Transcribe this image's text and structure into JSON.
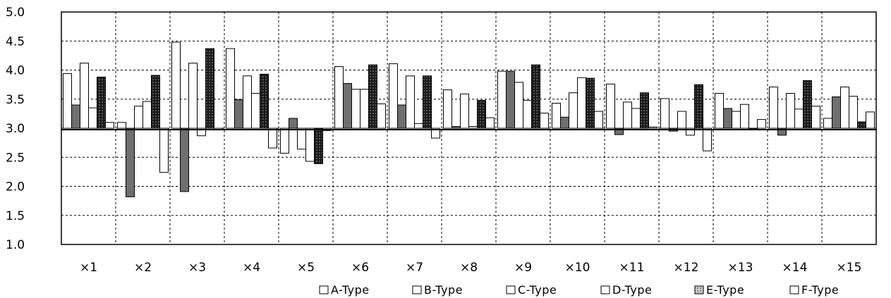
{
  "chart_data": {
    "type": "bar",
    "baseline": 3.0,
    "ylim": [
      1.0,
      5.0
    ],
    "yticks": [
      "1.0",
      "1.5",
      "2.0",
      "2.5",
      "3.0",
      "3.5",
      "4.0",
      "4.5",
      "5.0"
    ],
    "grid": true,
    "legend_position": "bottom-right",
    "categories": [
      "×1",
      "×2",
      "×3",
      "×4",
      "×5",
      "×6",
      "×7",
      "×8",
      "×9",
      "×10",
      "×11",
      "×12",
      "×13",
      "×14",
      "×15"
    ],
    "series": [
      {
        "name": "A-Type",
        "color": "#ffffff",
        "values": [
          3.94,
          3.1,
          4.48,
          4.37,
          2.57,
          4.06,
          4.11,
          3.66,
          3.98,
          3.43,
          3.76,
          3.51,
          3.6,
          3.71,
          3.17
        ]
      },
      {
        "name": "B-Type",
        "color": "#7a7a7a",
        "values": [
          3.4,
          1.82,
          1.91,
          3.49,
          3.17,
          3.77,
          3.4,
          3.03,
          3.98,
          3.19,
          2.89,
          2.95,
          3.34,
          2.88,
          3.54
        ]
      },
      {
        "name": "C-Type",
        "color": "#ffffff",
        "values": [
          4.12,
          3.38,
          4.12,
          3.9,
          2.64,
          3.67,
          3.9,
          3.59,
          3.79,
          3.61,
          3.45,
          3.29,
          3.29,
          3.6,
          3.71
        ]
      },
      {
        "name": "D-Type",
        "color": "#ffffff",
        "values": [
          3.35,
          3.46,
          2.87,
          3.6,
          2.43,
          3.67,
          3.08,
          3.03,
          3.48,
          3.87,
          3.34,
          2.88,
          3.41,
          3.33,
          3.55
        ]
      },
      {
        "name": "E-Type",
        "color": "#a8a8a8",
        "values": [
          3.88,
          3.91,
          4.37,
          3.93,
          2.39,
          4.09,
          3.9,
          3.48,
          4.09,
          3.86,
          3.61,
          3.75,
          2.98,
          3.82,
          3.11
        ]
      },
      {
        "name": "F-Type",
        "color": "#ffffff",
        "values": [
          3.1,
          2.24,
          2.97,
          2.66,
          2.96,
          3.42,
          2.83,
          3.18,
          3.26,
          3.29,
          3.02,
          2.61,
          3.15,
          3.38,
          3.28
        ]
      }
    ]
  }
}
